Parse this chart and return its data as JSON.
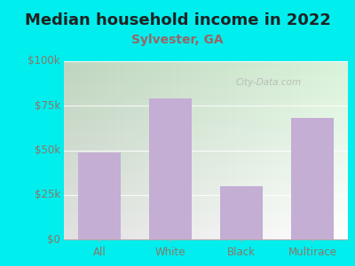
{
  "title": "Median household income in 2022",
  "subtitle": "Sylvester, GA",
  "categories": [
    "All",
    "White",
    "Black",
    "Multirace"
  ],
  "values": [
    49000,
    79000,
    30000,
    68000
  ],
  "bar_color": "#c4aed4",
  "title_color": "#222222",
  "subtitle_color": "#996666",
  "tick_label_color": "#887766",
  "axis_label_color": "#887766",
  "bg_outer": "#00EEEE",
  "ylim": [
    0,
    100000
  ],
  "yticks": [
    0,
    25000,
    50000,
    75000,
    100000
  ],
  "ytick_labels": [
    "$0",
    "$25k",
    "$50k",
    "$75k",
    "$100k"
  ],
  "watermark": "City-Data.com",
  "title_fontsize": 13,
  "subtitle_fontsize": 10,
  "tick_fontsize": 8.5
}
